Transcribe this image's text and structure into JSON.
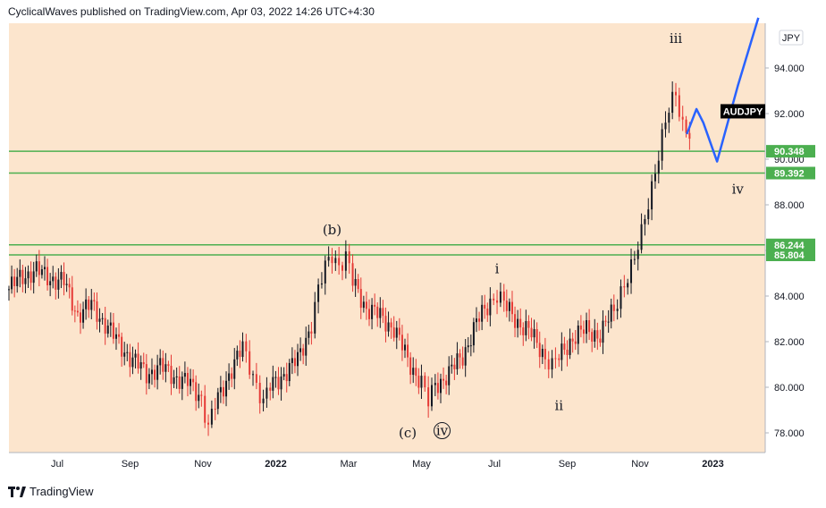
{
  "header": {
    "text": "CyclicalWaves published on TradingView.com, Apr 03, 2022 14:26 UTC+4:30"
  },
  "footer": {
    "brand": "TradingView",
    "logo_icon": "tradingview-logo-icon"
  },
  "colors": {
    "background": "#fce5cd",
    "up_candle": "#131722",
    "down_candle": "#e53935",
    "level_line": "#4caf50",
    "projection": "#2962ff",
    "symbol_tag": "#000000"
  },
  "chart_data": {
    "type": "candlestick",
    "symbol": "AUDJPY",
    "currency": "JPY",
    "ylim": [
      76.8,
      95.8
    ],
    "y_ticks": [
      "78.000",
      "80.000",
      "82.000",
      "84.000",
      "86.000",
      "88.000",
      "90.000",
      "92.000",
      "94.000"
    ],
    "x_ticks": [
      {
        "label": "Jul",
        "bold": false
      },
      {
        "label": "Sep",
        "bold": false
      },
      {
        "label": "Nov",
        "bold": false
      },
      {
        "label": "2022",
        "bold": true
      },
      {
        "label": "Mar",
        "bold": false
      },
      {
        "label": "May",
        "bold": false
      },
      {
        "label": "Jul",
        "bold": false
      },
      {
        "label": "Sep",
        "bold": false
      },
      {
        "label": "Nov",
        "bold": false
      },
      {
        "label": "2023",
        "bold": true
      }
    ],
    "price_path": [
      [
        0,
        84.3
      ],
      [
        2,
        84.9
      ],
      [
        4,
        85.1
      ],
      [
        6,
        84.8
      ],
      [
        8,
        84.6
      ],
      [
        10,
        83.2
      ],
      [
        12,
        83.6
      ],
      [
        14,
        82.8
      ],
      [
        16,
        81.9
      ],
      [
        18,
        81.2
      ],
      [
        20,
        80.6
      ],
      [
        22,
        80.9
      ],
      [
        24,
        80.5
      ],
      [
        26,
        80.2
      ],
      [
        28,
        79.6
      ],
      [
        29,
        78.2
      ],
      [
        30,
        79.2
      ],
      [
        32,
        80.6
      ],
      [
        34,
        81.7
      ],
      [
        35,
        81.0
      ],
      [
        36,
        80.2
      ],
      [
        37,
        79.3
      ],
      [
        38,
        80.0
      ],
      [
        40,
        80.6
      ],
      [
        42,
        81.2
      ],
      [
        44,
        82.8
      ],
      [
        45,
        84.2
      ],
      [
        46,
        85.2
      ],
      [
        47,
        85.9
      ],
      [
        48,
        85.4
      ],
      [
        49,
        85.7
      ],
      [
        50,
        84.6
      ],
      [
        52,
        83.5
      ],
      [
        54,
        83.1
      ],
      [
        56,
        82.6
      ],
      [
        58,
        81.2
      ],
      [
        60,
        80.2
      ],
      [
        61,
        79.3
      ],
      [
        62,
        80.1
      ],
      [
        64,
        80.6
      ],
      [
        66,
        81.4
      ],
      [
        68,
        82.8
      ],
      [
        70,
        83.8
      ],
      [
        71,
        84.1
      ],
      [
        72,
        83.6
      ],
      [
        74,
        82.9
      ],
      [
        76,
        82.3
      ],
      [
        78,
        81.4
      ],
      [
        79,
        80.9
      ],
      [
        80,
        81.3
      ],
      [
        82,
        82.2
      ],
      [
        84,
        82.5
      ],
      [
        86,
        82.3
      ],
      [
        88,
        83.4
      ],
      [
        89,
        84.3
      ],
      [
        90,
        84.9
      ],
      [
        91,
        85.5
      ],
      [
        92,
        86.7
      ],
      [
        93,
        88.2
      ],
      [
        94,
        89.6
      ],
      [
        95,
        90.9
      ],
      [
        96,
        92.1
      ],
      [
        97,
        92.9
      ],
      [
        98,
        91.6
      ],
      [
        99,
        91.2
      ]
    ],
    "horizontal_levels": [
      {
        "price": 90.348,
        "label": "90.348"
      },
      {
        "price": 89.392,
        "label": "89.392"
      },
      {
        "price": 86.244,
        "label": "86.244"
      },
      {
        "price": 85.804,
        "label": "85.804"
      }
    ],
    "current_price_tag": "AUDJPY",
    "projection_path": [
      [
        98.6,
        91.1
      ],
      [
        100,
        92.2
      ],
      [
        101,
        91.6
      ],
      [
        103,
        89.9
      ],
      [
        106,
        93.2
      ],
      [
        109,
        96.2
      ]
    ],
    "wave_labels": [
      {
        "text": "(b)",
        "index": 47,
        "price": 86.7
      },
      {
        "text": "(c)",
        "index": 58,
        "price": 77.8
      },
      {
        "text": "iv",
        "index": 63,
        "price": 77.9,
        "circled": true
      },
      {
        "text": "i",
        "index": 71,
        "price": 85.0
      },
      {
        "text": "ii",
        "index": 80,
        "price": 79.0
      },
      {
        "text": "iii",
        "index": 97,
        "price": 95.1
      },
      {
        "text": "iv",
        "index": 106,
        "price": 88.5
      }
    ]
  }
}
